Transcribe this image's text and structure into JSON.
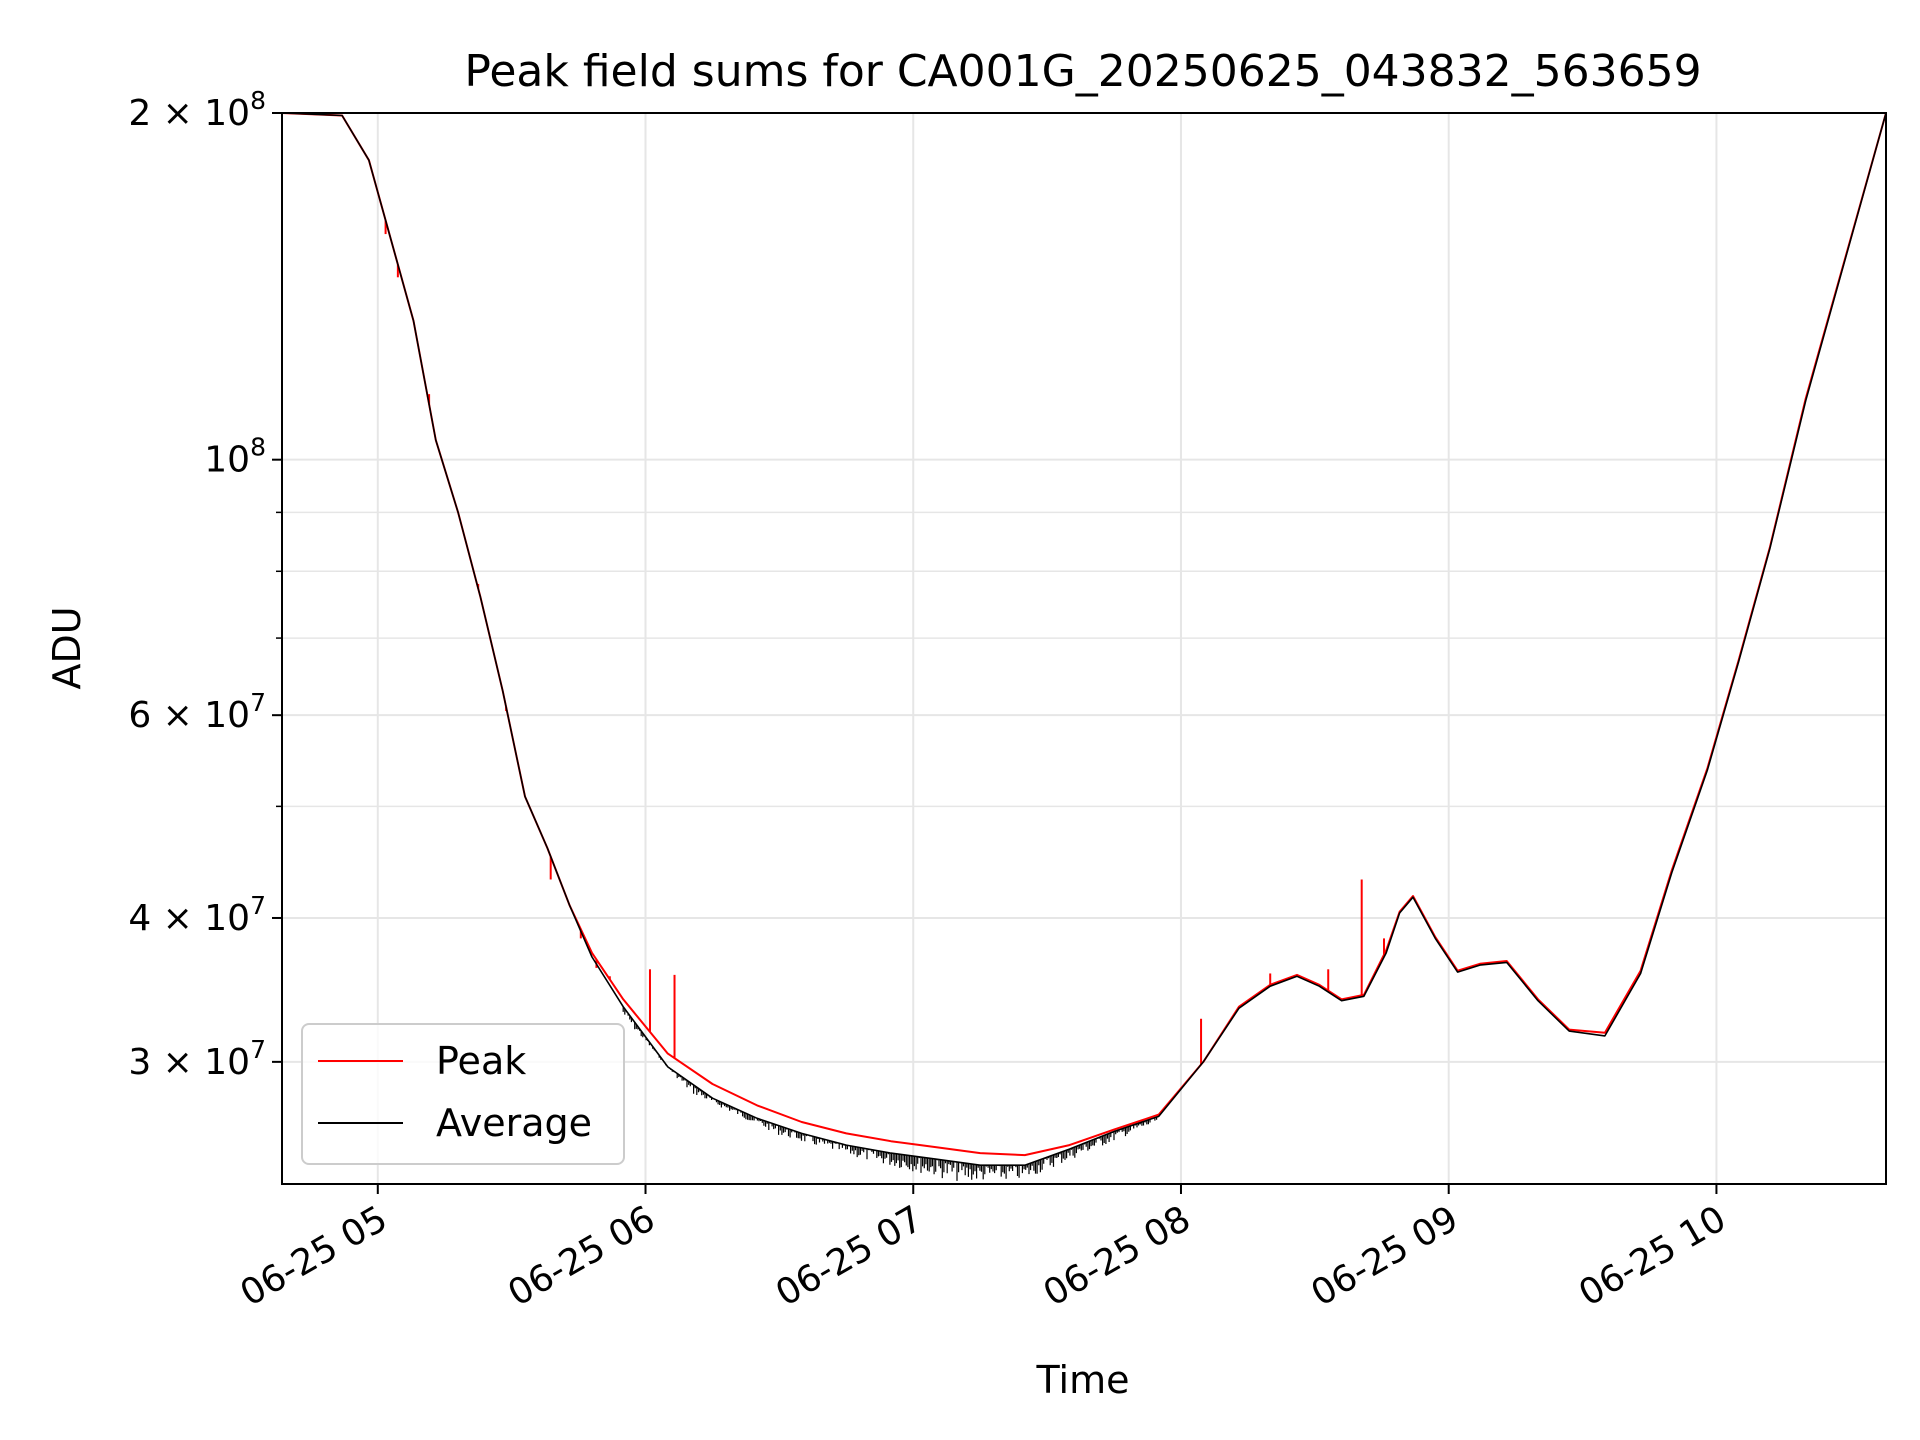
{
  "chart_data": {
    "type": "line",
    "title": "Peak field sums for CA001G_20250625_043832_563659",
    "xlabel": "Time",
    "ylabel": "ADU",
    "y_scale": "log",
    "ylim": [
      23500000,
      200000000
    ],
    "xlim": [
      "2025-06-25T04:38:32",
      "2025-06-25T10:38:00"
    ],
    "grid": true,
    "legend_position": "lower-left",
    "x_ticks": [
      {
        "value": "2025-06-25T05:00:00",
        "label": "06-25 05"
      },
      {
        "value": "2025-06-25T06:00:00",
        "label": "06-25 06"
      },
      {
        "value": "2025-06-25T07:00:00",
        "label": "06-25 07"
      },
      {
        "value": "2025-06-25T08:00:00",
        "label": "06-25 08"
      },
      {
        "value": "2025-06-25T09:00:00",
        "label": "06-25 09"
      },
      {
        "value": "2025-06-25T10:00:00",
        "label": "06-25 10"
      }
    ],
    "y_ticks": [
      {
        "value": 200000000,
        "mantissa": "2",
        "exp": "8"
      },
      {
        "value": 100000000,
        "mantissa": "",
        "exp": "8"
      },
      {
        "value": 60000000,
        "mantissa": "6",
        "exp": "7"
      },
      {
        "value": 40000000,
        "mantissa": "4",
        "exp": "7"
      },
      {
        "value": 30000000,
        "mantissa": "3",
        "exp": "7"
      }
    ],
    "y_minor_ticks": [
      90000000,
      80000000,
      70000000,
      50000000
    ],
    "series": [
      {
        "name": "Peak",
        "color": "#ff0000",
        "x": [
          "2025-06-25T04:38:32",
          "2025-06-25T04:52:00",
          "2025-06-25T04:58:00",
          "2025-06-25T05:03:00",
          "2025-06-25T05:08:00",
          "2025-06-25T05:13:00",
          "2025-06-25T05:18:00",
          "2025-06-25T05:23:00",
          "2025-06-25T05:28:00",
          "2025-06-25T05:33:00",
          "2025-06-25T05:38:00",
          "2025-06-25T05:43:00",
          "2025-06-25T05:48:00",
          "2025-06-25T05:55:00",
          "2025-06-25T06:05:00",
          "2025-06-25T06:15:00",
          "2025-06-25T06:25:00",
          "2025-06-25T06:35:00",
          "2025-06-25T06:45:00",
          "2025-06-25T06:55:00",
          "2025-06-25T07:05:00",
          "2025-06-25T07:15:00",
          "2025-06-25T07:25:00",
          "2025-06-25T07:35:00",
          "2025-06-25T07:45:00",
          "2025-06-25T07:55:00",
          "2025-06-25T08:05:00",
          "2025-06-25T08:13:00",
          "2025-06-25T08:20:00",
          "2025-06-25T08:26:00",
          "2025-06-25T08:31:00",
          "2025-06-25T08:36:00",
          "2025-06-25T08:41:00",
          "2025-06-25T08:46:00",
          "2025-06-25T08:49:00",
          "2025-06-25T08:52:00",
          "2025-06-25T08:57:00",
          "2025-06-25T09:02:00",
          "2025-06-25T09:07:00",
          "2025-06-25T09:13:00",
          "2025-06-25T09:20:00",
          "2025-06-25T09:27:00",
          "2025-06-25T09:35:00",
          "2025-06-25T09:43:00",
          "2025-06-25T09:50:00",
          "2025-06-25T09:58:00",
          "2025-06-25T10:05:00",
          "2025-06-25T10:12:00",
          "2025-06-25T10:20:00",
          "2025-06-25T10:38:00"
        ],
        "y": [
          200000000,
          199000000,
          182000000,
          155000000,
          132000000,
          104000000,
          90000000,
          76000000,
          63000000,
          51000000,
          46000000,
          41000000,
          37300000,
          34000000,
          30500000,
          28700000,
          27500000,
          26600000,
          26000000,
          25600000,
          25300000,
          25000000,
          24900000,
          25400000,
          26200000,
          27000000,
          30000000,
          33500000,
          35000000,
          35700000,
          35000000,
          34000000,
          34300000,
          37500000,
          40500000,
          41800000,
          38500000,
          36000000,
          36500000,
          36700000,
          34000000,
          32000000,
          31800000,
          36000000,
          44000000,
          54000000,
          67000000,
          84000000,
          113000000,
          200000000
        ],
        "spikes": [
          {
            "x": "2025-06-25T05:01:45",
            "y": 157000000
          },
          {
            "x": "2025-06-25T05:04:30",
            "y": 144000000
          },
          {
            "x": "2025-06-25T05:11:30",
            "y": 114000000
          },
          {
            "x": "2025-06-25T05:22:30",
            "y": 78000000
          },
          {
            "x": "2025-06-25T05:28:45",
            "y": 60500000
          },
          {
            "x": "2025-06-25T05:38:45",
            "y": 43200000
          },
          {
            "x": "2025-06-25T05:45:30",
            "y": 38400000
          },
          {
            "x": "2025-06-25T05:49:00",
            "y": 36200000
          },
          {
            "x": "2025-06-25T05:52:00",
            "y": 35600000
          },
          {
            "x": "2025-06-25T06:01:00",
            "y": 36100000
          },
          {
            "x": "2025-06-25T06:06:30",
            "y": 35700000
          },
          {
            "x": "2025-06-25T08:04:30",
            "y": 32700000
          },
          {
            "x": "2025-06-25T08:20:00",
            "y": 35800000
          },
          {
            "x": "2025-06-25T08:26:00",
            "y": 35600000
          },
          {
            "x": "2025-06-25T08:33:00",
            "y": 36100000
          },
          {
            "x": "2025-06-25T08:40:30",
            "y": 43200000
          },
          {
            "x": "2025-06-25T08:45:30",
            "y": 38400000
          }
        ]
      },
      {
        "name": "Average",
        "color": "#000000",
        "x": [
          "2025-06-25T04:38:32",
          "2025-06-25T04:52:00",
          "2025-06-25T04:58:00",
          "2025-06-25T05:03:00",
          "2025-06-25T05:08:00",
          "2025-06-25T05:13:00",
          "2025-06-25T05:18:00",
          "2025-06-25T05:23:00",
          "2025-06-25T05:28:00",
          "2025-06-25T05:33:00",
          "2025-06-25T05:38:00",
          "2025-06-25T05:43:00",
          "2025-06-25T05:48:00",
          "2025-06-25T05:55:00",
          "2025-06-25T06:05:00",
          "2025-06-25T06:15:00",
          "2025-06-25T06:25:00",
          "2025-06-25T06:35:00",
          "2025-06-25T06:45:00",
          "2025-06-25T06:55:00",
          "2025-06-25T07:05:00",
          "2025-06-25T07:15:00",
          "2025-06-25T07:25:00",
          "2025-06-25T07:35:00",
          "2025-06-25T07:45:00",
          "2025-06-25T07:55:00",
          "2025-06-25T08:05:00",
          "2025-06-25T08:13:00",
          "2025-06-25T08:20:00",
          "2025-06-25T08:26:00",
          "2025-06-25T08:31:00",
          "2025-06-25T08:36:00",
          "2025-06-25T08:41:00",
          "2025-06-25T08:46:00",
          "2025-06-25T08:49:00",
          "2025-06-25T08:52:00",
          "2025-06-25T08:57:00",
          "2025-06-25T09:02:00",
          "2025-06-25T09:07:00",
          "2025-06-25T09:13:00",
          "2025-06-25T09:20:00",
          "2025-06-25T09:27:00",
          "2025-06-25T09:35:00",
          "2025-06-25T09:43:00",
          "2025-06-25T09:50:00",
          "2025-06-25T09:58:00",
          "2025-06-25T10:05:00",
          "2025-06-25T10:12:00",
          "2025-06-25T10:20:00",
          "2025-06-25T10:38:00"
        ],
        "y": [
          200000000,
          199000000,
          182000000,
          155000000,
          132000000,
          104000000,
          90000000,
          76000000,
          63000000,
          51000000,
          46000000,
          41000000,
          37000000,
          33500000,
          29700000,
          27900000,
          26800000,
          26000000,
          25400000,
          25000000,
          24700000,
          24400000,
          24400000,
          25200000,
          26100000,
          26900000,
          30000000,
          33400000,
          34900000,
          35600000,
          34900000,
          33900000,
          34200000,
          37300000,
          40400000,
          41700000,
          38400000,
          35900000,
          36400000,
          36600000,
          33900000,
          31900000,
          31600000,
          35800000,
          43800000,
          53800000,
          66800000,
          83800000,
          112500000,
          200000000
        ],
        "noise_band": [
          {
            "x": "2025-06-25T05:55:00",
            "low": 32800000
          },
          {
            "x": "2025-06-25T06:10:00",
            "low": 28200000
          },
          {
            "x": "2025-06-25T06:30:00",
            "low": 25900000
          },
          {
            "x": "2025-06-25T06:50:00",
            "low": 24600000
          },
          {
            "x": "2025-06-25T07:10:00",
            "low": 23600000
          },
          {
            "x": "2025-06-25T07:25:00",
            "low": 23700000
          },
          {
            "x": "2025-06-25T07:45:00",
            "low": 25600000
          },
          {
            "x": "2025-06-25T07:55:00",
            "low": 26600000
          }
        ]
      }
    ]
  }
}
